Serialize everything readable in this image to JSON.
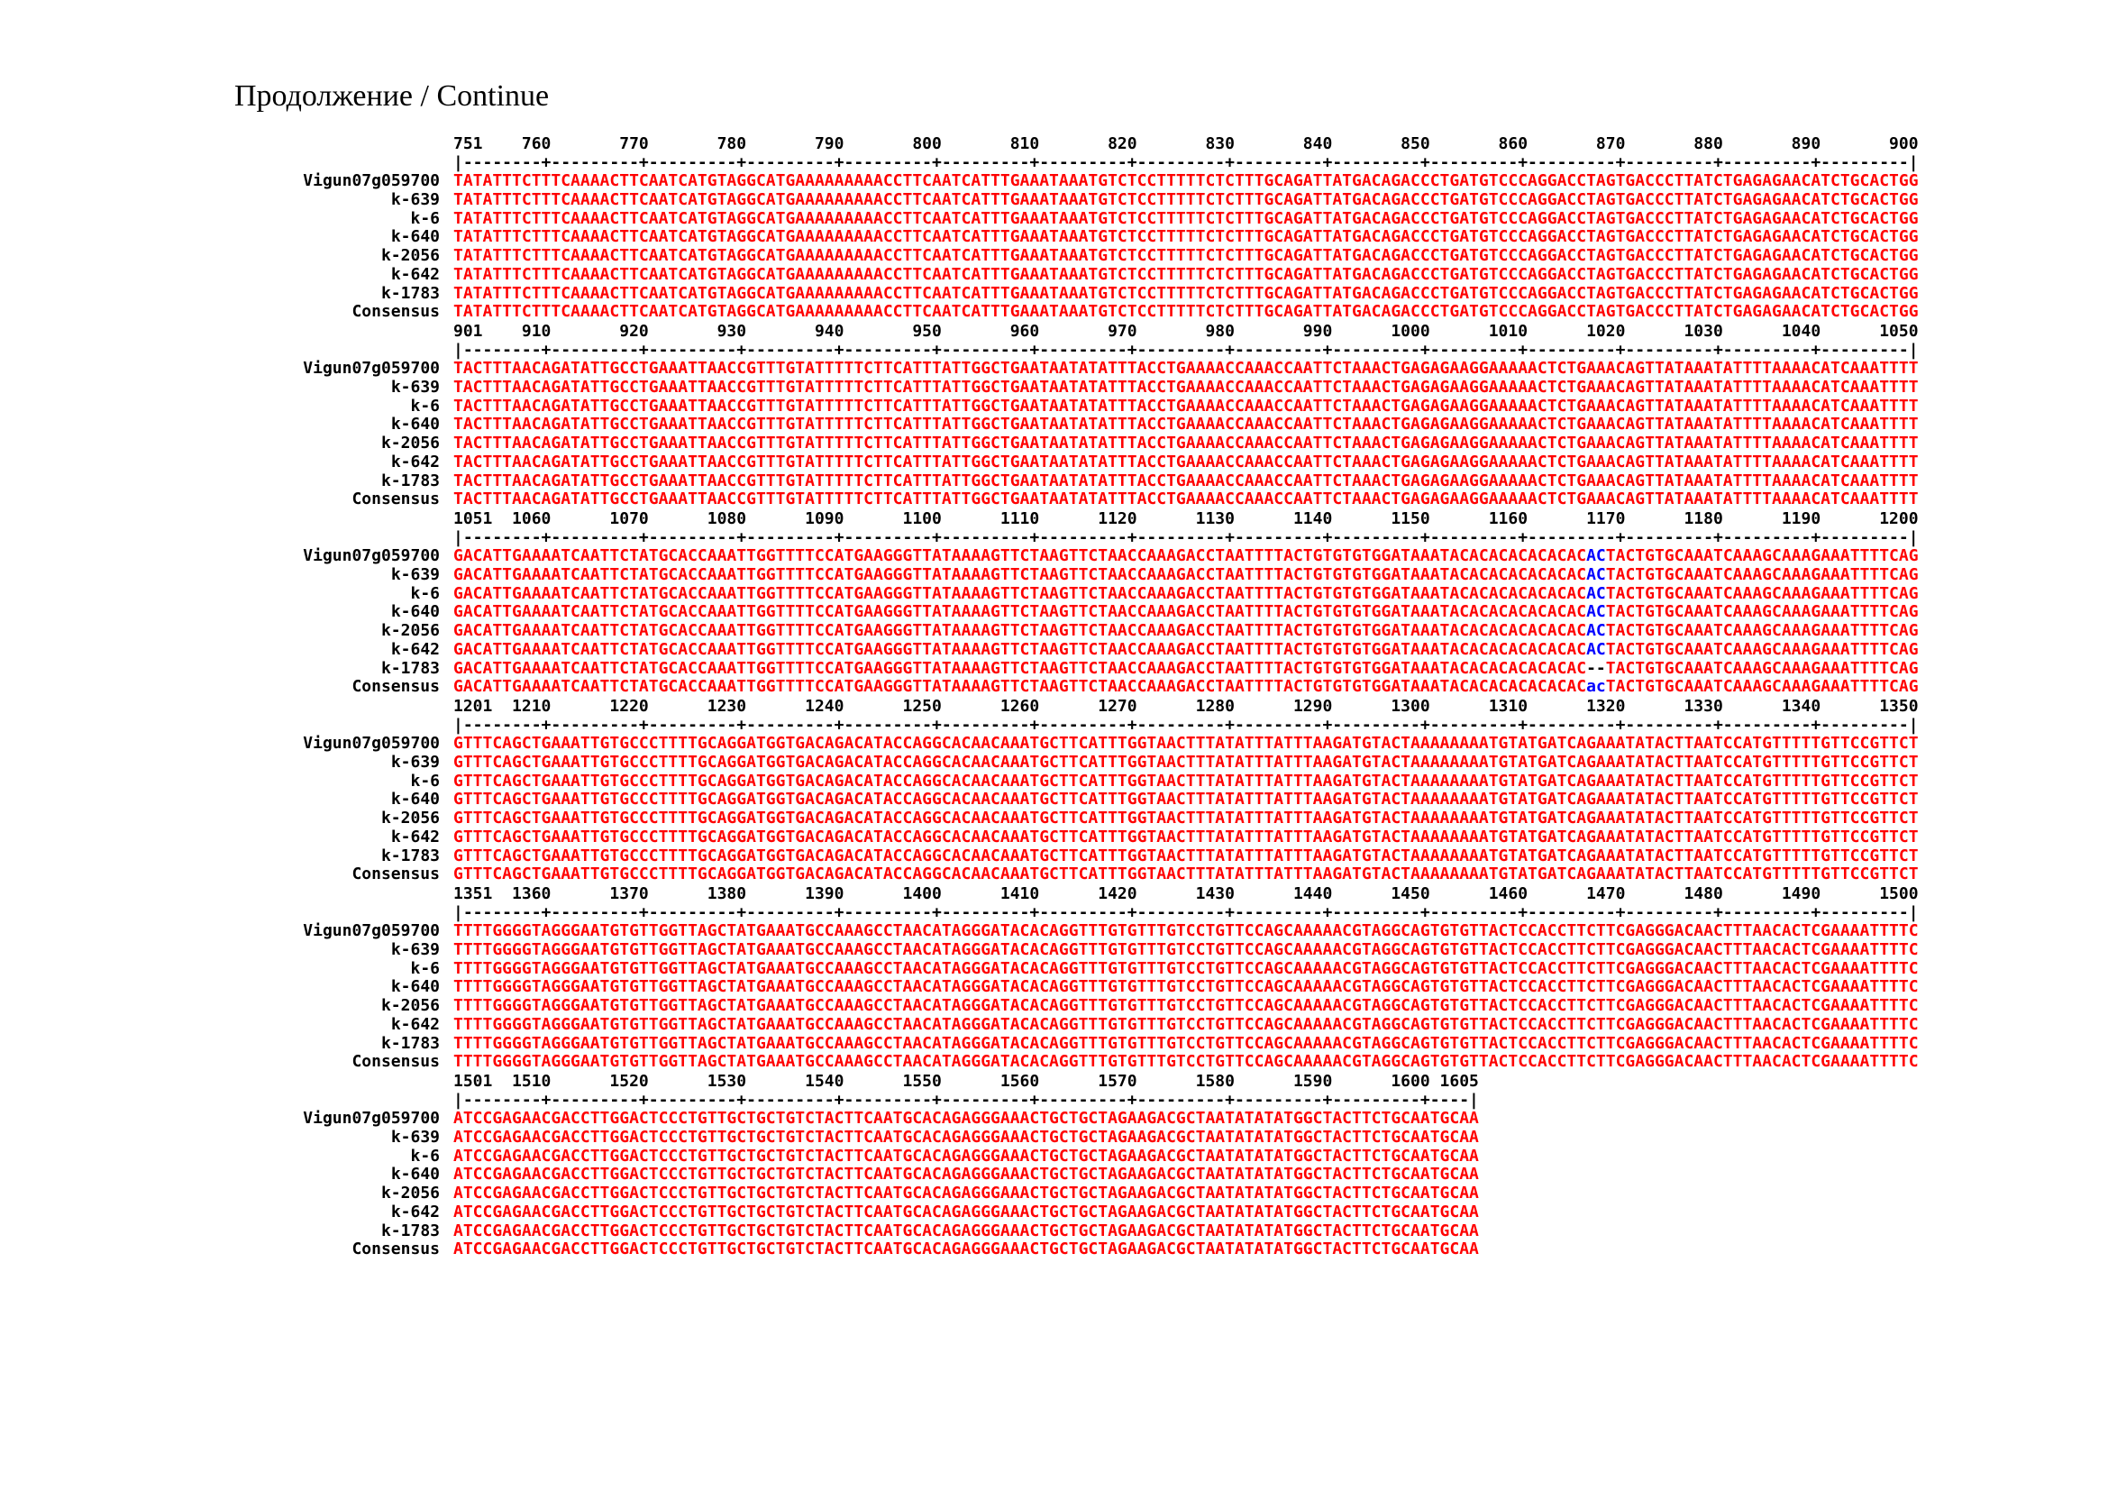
{
  "title": "Продолжение / Continue",
  "colors": {
    "sequence": "#ff0000",
    "variant_highlight": "#0000ff",
    "gap_dashes": "#000000",
    "ruler_text": "#000000",
    "label_text": "#000000",
    "background": "#ffffff"
  },
  "row_labels": [
    "Vigun07g059700",
    "k-639",
    "k-6",
    "k-640",
    "k-2056",
    "k-642",
    "k-1783",
    "Consensus"
  ],
  "blocks": [
    {
      "start": 751,
      "end": 900,
      "sequence": "TATATTTCTTTCAAAACTTCAATCATGTAGGCATGAAAAAAAAACCTTCAATCATTTGAAATAAATGTCTCCTTTTTCTCTTTGCAGATTATGACAGACCCTGATGTCCCAGGACCTAGTGACCCTTATCTGAGAGAACATCTGCACTGG"
    },
    {
      "start": 901,
      "end": 1050,
      "sequence": "TACTTTAACAGATATTGCCTGAAATTAACCGTTTGTATTTTTCTTCATTTATTGGCTGAATAATATATTTACCTGAAAACCAAACCAATTCTAAACTGAGAGAAGGAAAAACTCTGAAACAGTTATAAATATTTTAAAACATCAAATTTT"
    },
    {
      "start": 1051,
      "end": 1200,
      "pre": "GACATTGAAAATCAATTCTATGCACCAAATTGGTTTTCCATGAAGGGTTATAAAAGTTCTAAGTTCTAACCAAAGACCTAATTTTACTGTGTGTGGATAAATACACACACACACAC",
      "post": "TACTGTGCAAATCAAAGCAAAGAAATTTTCAG",
      "variant_positions": "1167-1168",
      "variants": {
        "default": {
          "text": "AC",
          "color": "#0000ff"
        },
        "k-1783": {
          "text": "--",
          "color": "#000000"
        },
        "Consensus": {
          "text": "ac",
          "color": "#0000ff"
        }
      }
    },
    {
      "start": 1201,
      "end": 1350,
      "sequence": "GTTTCAGCTGAAATTGTGCCCTTTTGCAGGATGGTGACAGACATACCAGGCACAACAAATGCTTCATTTGGTAACTTTATATTTATTTAAGATGTACTAAAAAAAATGTATGATCAGAAATATACTTAATCCATGTTTTTGTTCCGTTCT"
    },
    {
      "start": 1351,
      "end": 1500,
      "sequence": "TTTTGGGGTAGGGAATGTGTTGGTTAGCTATGAAATGCCAAAGCCTAACATAGGGATACACAGGTTTGTGTTTGTCCTGTTCCAGCAAAAACGTAGGCAGTGTGTTACTCCACCTTCTTCGAGGGACAACTTTAACACTCGAAAATTTTC"
    },
    {
      "start": 1501,
      "end": 1605,
      "sequence": "ATCCGAGAACGACCTTGGACTCCCTGTTGCTGCTGTCTACTTCAATGCACAGAGGGAAACTGCTGCTAGAAGACGCTAATATATATGGCTACTTCTGCAATGCAA"
    }
  ]
}
